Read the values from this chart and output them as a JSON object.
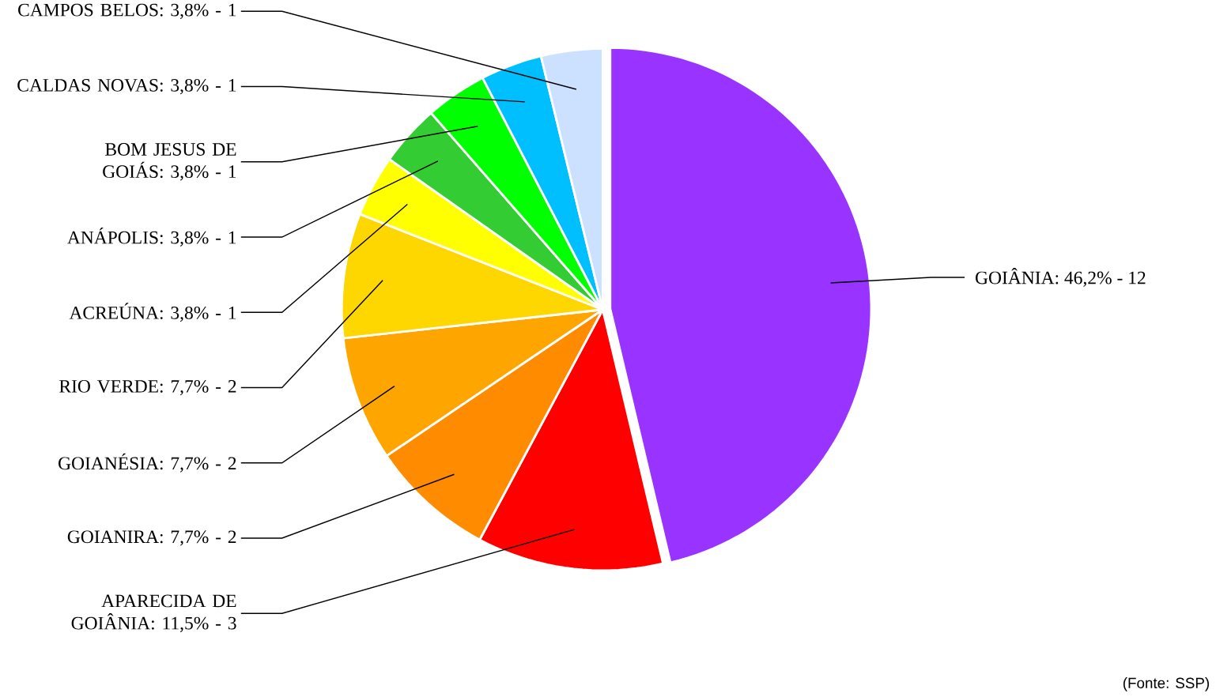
{
  "chart_data": {
    "type": "pie",
    "categories": [
      "GOIÂNIA: 46,2% - 12",
      "APARECIDA DE GOIÂNIA: 11,5% - 3",
      "GOIANIRA: 7,7% - 2",
      "GOIANÉSIA: 7,7% - 2",
      "RIO VERDE: 7,7% - 2",
      "ACREÚNA: 3,8% - 1",
      "ANÁPOLIS: 3,8% - 1",
      "BOM JESUS DE GOIÁS: 3,8% - 1",
      "CALDAS NOVAS: 3,8% - 1",
      "CAMPOS BELOS: 3,8% - 1"
    ],
    "values": [
      46.2,
      11.5,
      7.7,
      7.7,
      7.7,
      3.8,
      3.8,
      3.8,
      3.8,
      3.8
    ],
    "colors": [
      "#9933ff",
      "#ff0000",
      "#ff8c00",
      "#ffa500",
      "#ffd700",
      "#ffff00",
      "#33cc33",
      "#00ff00",
      "#00bfff",
      "#cce0ff"
    ],
    "annotations": [
      "(Fonte: SSP)"
    ]
  }
}
